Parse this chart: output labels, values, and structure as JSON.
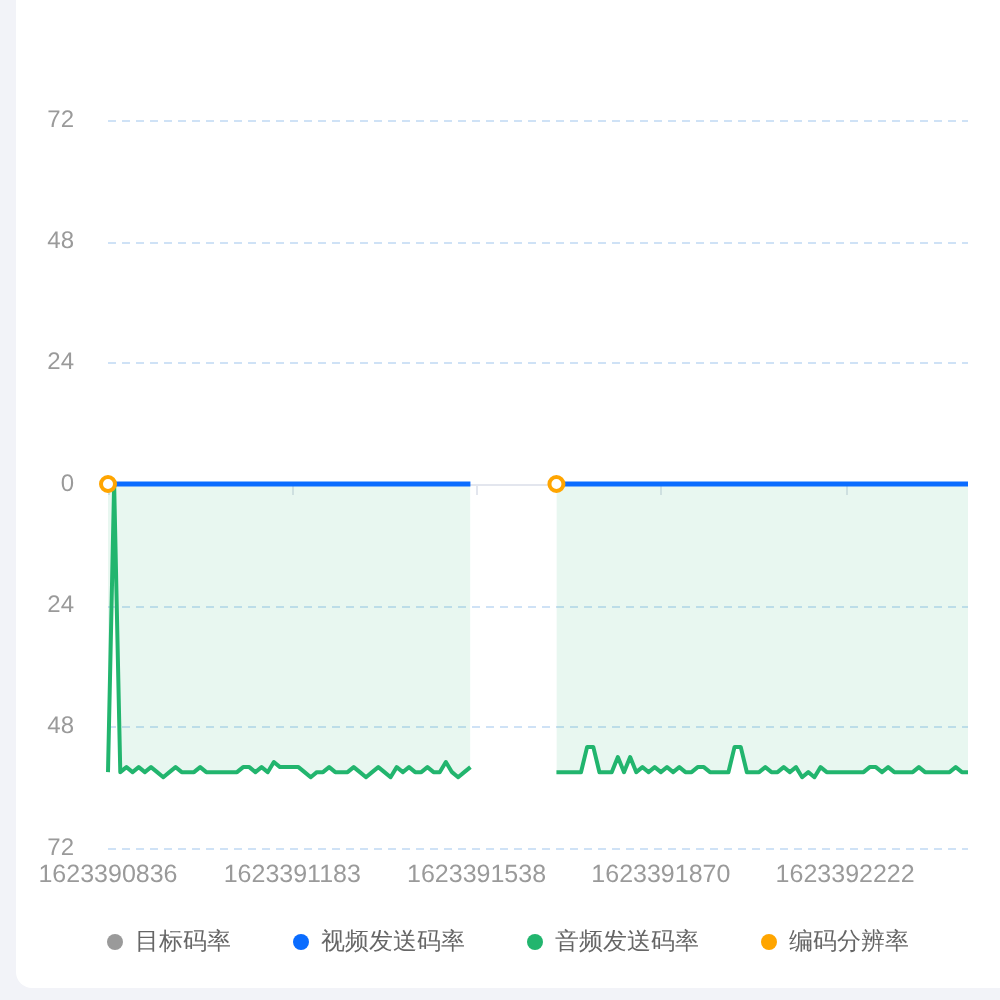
{
  "chart_data": {
    "type": "line",
    "categories": [
      "1623390836",
      null,
      null,
      null,
      null,
      null,
      null,
      null,
      null,
      null,
      null,
      null,
      null,
      null,
      null,
      null,
      null,
      null,
      null,
      null,
      null,
      null,
      null,
      null,
      null,
      null,
      null,
      null,
      null,
      null,
      "1623391183",
      null,
      null,
      null,
      null,
      null,
      null,
      null,
      null,
      null,
      null,
      null,
      null,
      null,
      null,
      null,
      null,
      null,
      null,
      null,
      null,
      null,
      null,
      null,
      null,
      null,
      null,
      null,
      null,
      null,
      "1623391538",
      null,
      null,
      null,
      null,
      null,
      null,
      null,
      null,
      null,
      null,
      null,
      null,
      null,
      null,
      null,
      null,
      null,
      null,
      null,
      null,
      null,
      null,
      null,
      null,
      null,
      null,
      null,
      null,
      null,
      "1623391870",
      null,
      null,
      null,
      null,
      null,
      null,
      null,
      null,
      null,
      null,
      null,
      null,
      null,
      null,
      null,
      null,
      null,
      null,
      null,
      null,
      null,
      null,
      null,
      null,
      null,
      null,
      null,
      null,
      null,
      "1623392222",
      null,
      null,
      null,
      null,
      null,
      null,
      null,
      null,
      null,
      null,
      null,
      null,
      null,
      null,
      null,
      null,
      null,
      null,
      null,
      null
    ],
    "series": [
      {
        "name": "目标码率",
        "color": "#9a9a9a",
        "values": [
          null,
          null,
          null,
          null,
          null,
          null,
          null,
          null,
          null,
          null,
          null,
          null,
          null,
          null,
          null,
          null,
          null,
          null,
          null,
          null,
          null,
          null,
          null,
          null,
          null,
          null,
          null,
          null,
          null,
          null,
          null,
          null,
          null,
          null,
          null,
          null,
          null,
          null,
          null,
          null,
          null,
          null,
          null,
          null,
          null,
          null,
          null,
          null,
          null,
          null,
          null,
          null,
          null,
          null,
          null,
          null,
          null,
          null,
          null,
          null,
          null,
          null,
          null,
          null,
          null,
          null,
          null,
          null,
          null,
          null,
          null,
          null,
          null,
          null,
          null,
          null,
          null,
          null,
          null,
          null,
          null,
          null,
          null,
          null,
          null,
          null,
          null,
          null,
          null,
          null,
          null,
          null,
          null,
          null,
          null,
          null,
          null,
          null,
          null,
          null,
          null,
          null,
          null,
          null,
          null,
          null,
          null,
          null,
          null,
          null,
          null,
          null,
          null,
          null,
          null,
          null,
          null,
          null,
          null,
          null,
          null,
          null,
          null,
          null,
          null,
          null,
          null,
          null,
          null,
          null,
          null,
          null,
          null,
          null,
          null,
          null,
          null,
          null,
          null,
          null,
          null
        ]
      },
      {
        "name": "视频发送码率",
        "color": "#0a6cff",
        "values": [
          0,
          0,
          0,
          0,
          0,
          0,
          0,
          0,
          0,
          0,
          0,
          0,
          0,
          0,
          0,
          0,
          0,
          0,
          0,
          0,
          0,
          0,
          0,
          0,
          0,
          0,
          0,
          0,
          0,
          0,
          0,
          0,
          0,
          0,
          0,
          0,
          0,
          0,
          0,
          0,
          0,
          0,
          0,
          0,
          0,
          0,
          0,
          0,
          0,
          0,
          0,
          0,
          0,
          0,
          0,
          0,
          0,
          0,
          0,
          0,
          null,
          null,
          null,
          null,
          null,
          null,
          null,
          null,
          null,
          null,
          null,
          null,
          null,
          0,
          0,
          0,
          0,
          0,
          0,
          0,
          0,
          0,
          0,
          0,
          0,
          0,
          0,
          0,
          0,
          0,
          0,
          0,
          0,
          0,
          0,
          0,
          0,
          0,
          0,
          0,
          0,
          0,
          0,
          0,
          0,
          0,
          0,
          0,
          0,
          0,
          0,
          0,
          0,
          0,
          0,
          0,
          0,
          0,
          0,
          0,
          0,
          0,
          0,
          0,
          0,
          0,
          0,
          0,
          0,
          0,
          0,
          0,
          0,
          0,
          0,
          0,
          0,
          0,
          0,
          0,
          0
        ]
      },
      {
        "name": "音频发送码率",
        "color": "#22b56e",
        "type": "area",
        "values": [
          -57,
          0,
          -57,
          -56,
          -57,
          -56,
          -57,
          -56,
          -57,
          -58,
          -57,
          -56,
          -57,
          -57,
          -57,
          -56,
          -57,
          -57,
          -57,
          -57,
          -57,
          -57,
          -56,
          -56,
          -57,
          -56,
          -57,
          -55,
          -56,
          -56,
          -56,
          -56,
          -57,
          -58,
          -57,
          -57,
          -56,
          -57,
          -57,
          -57,
          -56,
          -57,
          -58,
          -57,
          -56,
          -57,
          -58,
          -56,
          -57,
          -56,
          -57,
          -57,
          -56,
          -57,
          -57,
          -55,
          -57,
          -58,
          -57,
          -56,
          null,
          null,
          null,
          null,
          null,
          null,
          null,
          null,
          null,
          null,
          null,
          null,
          null,
          -57,
          -57,
          -57,
          -57,
          -57,
          -52,
          -52,
          -57,
          -57,
          -57,
          -54,
          -57,
          -54,
          -57,
          -56,
          -57,
          -56,
          -57,
          -56,
          -57,
          -56,
          -57,
          -57,
          -56,
          -56,
          -57,
          -57,
          -57,
          -57,
          -52,
          -52,
          -57,
          -57,
          -57,
          -56,
          -57,
          -57,
          -56,
          -57,
          -56,
          -58,
          -57,
          -58,
          -56,
          -57,
          -57,
          -57,
          -57,
          -57,
          -57,
          -57,
          -56,
          -56,
          -57,
          -56,
          -57,
          -57,
          -57,
          -57,
          -56,
          -57,
          -57,
          -57,
          -57,
          -57,
          -56,
          -57,
          -57
        ]
      },
      {
        "name": "编码分辨率",
        "color": "#ffa500",
        "type": "scatter",
        "marker": "circle",
        "values": [
          0,
          null,
          null,
          null,
          null,
          null,
          null,
          null,
          null,
          null,
          null,
          null,
          null,
          null,
          null,
          null,
          null,
          null,
          null,
          null,
          null,
          null,
          null,
          null,
          null,
          null,
          null,
          null,
          null,
          null,
          null,
          null,
          null,
          null,
          null,
          null,
          null,
          null,
          null,
          null,
          null,
          null,
          null,
          null,
          null,
          null,
          null,
          null,
          null,
          null,
          null,
          null,
          null,
          null,
          null,
          null,
          null,
          null,
          null,
          null,
          null,
          null,
          null,
          null,
          null,
          null,
          null,
          null,
          null,
          null,
          null,
          null,
          null,
          0,
          null,
          null,
          null,
          null,
          null,
          null,
          null,
          null,
          null,
          null,
          null,
          null,
          null,
          null,
          null,
          null,
          null,
          null,
          null,
          null,
          null,
          null,
          null,
          null,
          null,
          null,
          null,
          null,
          null,
          null,
          null,
          null,
          null,
          null,
          null,
          null,
          null,
          null,
          null,
          null,
          null,
          null,
          null,
          null,
          null,
          null,
          null,
          null,
          null,
          null,
          null,
          null,
          null,
          null,
          null,
          null,
          null,
          null,
          null,
          null,
          null,
          null,
          null,
          null,
          null,
          null,
          null
        ]
      }
    ],
    "ylim": [
      -72,
      72
    ],
    "yticks": [
      72,
      48,
      24,
      0,
      {
        "value": -24,
        "label": "24"
      },
      {
        "value": -48,
        "label": "48"
      },
      {
        "value": -72,
        "label": "72"
      }
    ],
    "grid": "y",
    "legend": "bottom"
  }
}
